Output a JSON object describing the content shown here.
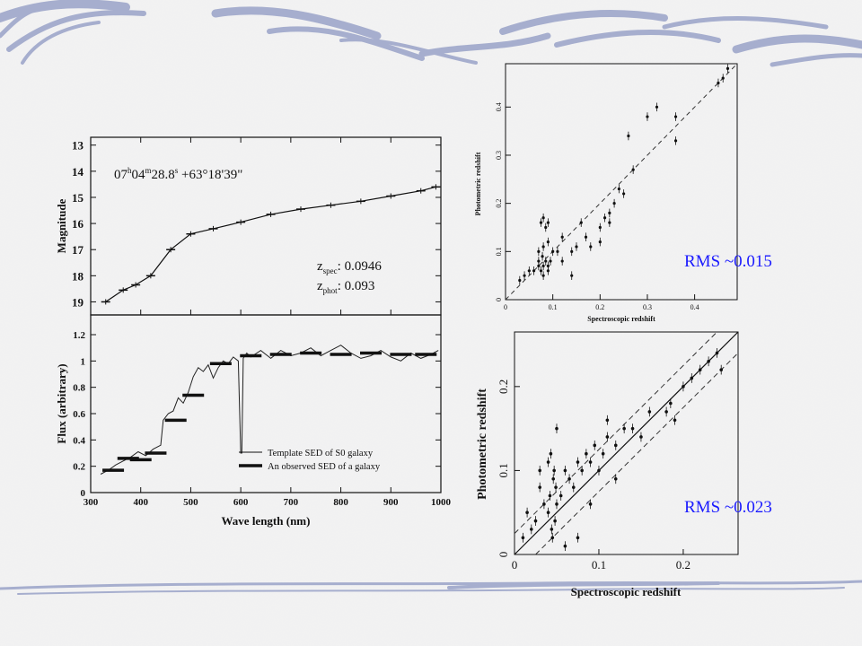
{
  "colors": {
    "background": "#f2f2f2",
    "swoosh": "#9aa3c8",
    "rms_text": "#1a1aff",
    "plot_ink": "#111111"
  },
  "annotations": {
    "rms_top": "RMS ~0.015",
    "rms_bottom": "RMS ~0.023"
  },
  "chart_data": [
    {
      "type": "line",
      "name_id": "magnitude-panel",
      "title": "07h04m28.8s +63°18'39\"",
      "coord_ra": "07",
      "coord_ra_m": "04",
      "coord_ra_s": "28.8",
      "coord_dec": "+63°18'39\"",
      "xlabel": "",
      "ylabel": "Magnitude",
      "ylim": [
        19.5,
        12.7
      ],
      "yticks": [
        13,
        14,
        15,
        16,
        17,
        18,
        19
      ],
      "ytick_labels": [
        "13",
        "14",
        "15",
        "16",
        "17",
        "18",
        "19"
      ],
      "xlim": [
        300,
        1000
      ],
      "notes": [
        {
          "label_main": "z",
          "label_sub": "spec",
          "value": "0.0946"
        },
        {
          "label_main": "z",
          "label_sub": "phot",
          "value": "0.093"
        }
      ],
      "x": [
        330,
        365,
        390,
        420,
        460,
        500,
        545,
        600,
        660,
        720,
        780,
        840,
        900,
        960,
        990
      ],
      "y": [
        19.0,
        18.55,
        18.35,
        18.0,
        17.0,
        16.4,
        16.2,
        15.95,
        15.65,
        15.45,
        15.3,
        15.15,
        14.95,
        14.75,
        14.6
      ]
    },
    {
      "type": "line",
      "name_id": "flux-panel",
      "xlabel": "Wave length (nm)",
      "ylabel": "Flux (arbitrary)",
      "xlim": [
        300,
        1000
      ],
      "ylim": [
        0,
        1.35
      ],
      "xticks": [
        300,
        400,
        500,
        600,
        700,
        800,
        900,
        1000
      ],
      "xtick_labels": [
        "300",
        "400",
        "500",
        "600",
        "700",
        "800",
        "900",
        "1000"
      ],
      "yticks": [
        0,
        0.2,
        0.4,
        0.6,
        0.8,
        1.0,
        1.2
      ],
      "ytick_labels": [
        "0",
        "0.2",
        "0.4",
        "0.6",
        "0.8",
        "1",
        "1.2"
      ],
      "legend": [
        "Template SED of S0 galaxy",
        "An observed SED of a galaxy"
      ],
      "legend_position": "bottom-right",
      "series": [
        {
          "name": "Template SED of S0 galaxy",
          "x": [
            320,
            335,
            350,
            365,
            380,
            395,
            410,
            425,
            440,
            445,
            455,
            465,
            475,
            485,
            495,
            505,
            515,
            525,
            535,
            545,
            555,
            565,
            575,
            585,
            595,
            600,
            602,
            605,
            612,
            620,
            640,
            660,
            680,
            700,
            720,
            740,
            760,
            780,
            800,
            820,
            840,
            860,
            880,
            900,
            920,
            940,
            960,
            980,
            995
          ],
          "y": [
            0.14,
            0.17,
            0.21,
            0.24,
            0.27,
            0.31,
            0.28,
            0.33,
            0.36,
            0.55,
            0.6,
            0.62,
            0.72,
            0.68,
            0.76,
            0.88,
            0.95,
            0.92,
            0.97,
            0.87,
            0.95,
            1.0,
            0.98,
            1.03,
            1.0,
            0.3,
            0.3,
            1.02,
            1.06,
            1.03,
            1.08,
            1.02,
            1.08,
            1.04,
            1.06,
            1.1,
            1.04,
            1.08,
            1.12,
            1.06,
            1.02,
            1.04,
            1.08,
            1.03,
            1.0,
            1.06,
            1.02,
            1.05,
            1.08
          ]
        },
        {
          "name": "An observed SED of a galaxy",
          "x": [
            345,
            375,
            400,
            430,
            470,
            505,
            560,
            620,
            680,
            740,
            800,
            860,
            920,
            970
          ],
          "y": [
            0.17,
            0.26,
            0.25,
            0.3,
            0.55,
            0.74,
            0.98,
            1.04,
            1.05,
            1.06,
            1.05,
            1.06,
            1.05,
            1.05
          ]
        }
      ]
    },
    {
      "type": "scatter",
      "name_id": "top-scatter",
      "xlabel": "Spectroscopic redshift",
      "ylabel": "Photometric redshift",
      "xlim": [
        0,
        0.49
      ],
      "ylim": [
        0,
        0.49
      ],
      "xticks": [
        0,
        0.1,
        0.2,
        0.3,
        0.4
      ],
      "xtick_labels": [
        "0",
        "0.1",
        "0.2",
        "0.3",
        "0.4"
      ],
      "yticks": [
        0,
        0.1,
        0.2,
        0.3,
        0.4
      ],
      "ytick_labels": [
        "0",
        "0.1",
        "0.2",
        "0.3",
        "0.4"
      ],
      "reference_line": "dashed y=x",
      "x": [
        0.03,
        0.04,
        0.05,
        0.06,
        0.07,
        0.07,
        0.075,
        0.078,
        0.08,
        0.08,
        0.085,
        0.09,
        0.09,
        0.095,
        0.1,
        0.075,
        0.08,
        0.085,
        0.09,
        0.07,
        0.08,
        0.09,
        0.11,
        0.12,
        0.14,
        0.15,
        0.16,
        0.17,
        0.18,
        0.2,
        0.21,
        0.22,
        0.23,
        0.24,
        0.25,
        0.26,
        0.27,
        0.3,
        0.32,
        0.36,
        0.36,
        0.45,
        0.46,
        0.47,
        0.12,
        0.2,
        0.22,
        0.14
      ],
      "y": [
        0.04,
        0.05,
        0.06,
        0.06,
        0.08,
        0.07,
        0.06,
        0.09,
        0.07,
        0.05,
        0.08,
        0.07,
        0.06,
        0.08,
        0.1,
        0.16,
        0.17,
        0.15,
        0.16,
        0.1,
        0.11,
        0.12,
        0.1,
        0.08,
        0.1,
        0.11,
        0.16,
        0.13,
        0.11,
        0.15,
        0.17,
        0.18,
        0.2,
        0.23,
        0.22,
        0.34,
        0.27,
        0.38,
        0.4,
        0.38,
        0.33,
        0.45,
        0.46,
        0.48,
        0.13,
        0.12,
        0.16,
        0.05
      ]
    },
    {
      "type": "scatter",
      "name_id": "bottom-scatter",
      "xlabel": "Spectroscopic redshift",
      "ylabel": "Photometric redshift",
      "xlim": [
        0,
        0.265
      ],
      "ylim": [
        0,
        0.265
      ],
      "xticks": [
        0,
        0.1,
        0.2
      ],
      "xtick_labels": [
        "0",
        "0.1",
        "0.2"
      ],
      "yticks": [
        0,
        0.1,
        0.2
      ],
      "ytick_labels": [
        "0",
        "0.1",
        "0.2"
      ],
      "reference_line": "solid y=x with dashed offsets",
      "x": [
        0.01,
        0.015,
        0.02,
        0.025,
        0.03,
        0.035,
        0.04,
        0.042,
        0.044,
        0.046,
        0.048,
        0.05,
        0.045,
        0.047,
        0.049,
        0.043,
        0.055,
        0.06,
        0.065,
        0.07,
        0.075,
        0.08,
        0.085,
        0.09,
        0.095,
        0.1,
        0.105,
        0.11,
        0.12,
        0.13,
        0.14,
        0.15,
        0.16,
        0.18,
        0.185,
        0.19,
        0.2,
        0.21,
        0.22,
        0.23,
        0.24,
        0.245,
        0.03,
        0.05,
        0.075,
        0.09,
        0.11,
        0.04,
        0.06,
        0.12
      ],
      "y": [
        0.02,
        0.05,
        0.03,
        0.04,
        0.08,
        0.06,
        0.05,
        0.07,
        0.03,
        0.09,
        0.04,
        0.06,
        0.02,
        0.1,
        0.08,
        0.12,
        0.07,
        0.1,
        0.09,
        0.08,
        0.11,
        0.1,
        0.12,
        0.11,
        0.13,
        0.1,
        0.12,
        0.14,
        0.13,
        0.15,
        0.15,
        0.14,
        0.17,
        0.17,
        0.18,
        0.16,
        0.2,
        0.21,
        0.22,
        0.23,
        0.24,
        0.22,
        0.1,
        0.15,
        0.02,
        0.06,
        0.16,
        0.11,
        0.01,
        0.09
      ]
    }
  ]
}
